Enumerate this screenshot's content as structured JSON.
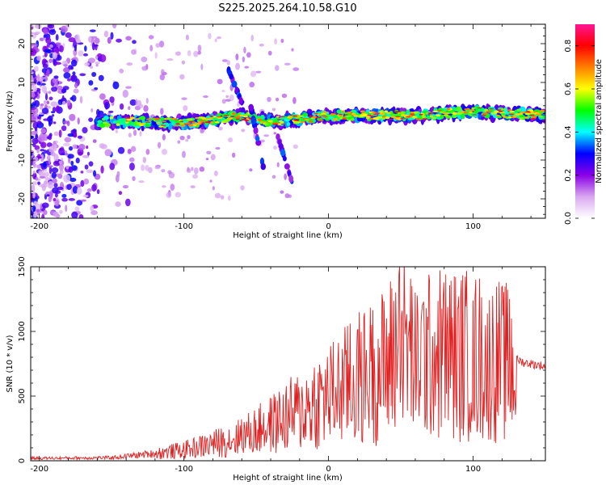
{
  "title": "S225.2025.264.10.58.G10",
  "chart_data": [
    {
      "type": "heatmap",
      "title": "S225.2025.264.10.58.G10",
      "xlabel": "Height of straight line (km)",
      "ylabel": "Frequency (Hz)",
      "xlim": [
        -206,
        150
      ],
      "ylim": [
        -25,
        25
      ],
      "xticks": [
        -200,
        -100,
        0,
        100
      ],
      "yticks": [
        -20,
        -10,
        0,
        10,
        20
      ],
      "colorbar": {
        "label": "Normalized spectral amplitude",
        "range": [
          0.0,
          0.9
        ],
        "ticks": [
          "0.0",
          "0.2",
          "0.4",
          "0.6",
          "0.8"
        ],
        "tick_values": [
          0.0,
          0.2,
          0.4,
          0.6,
          0.8
        ],
        "colors": [
          "#ffffff",
          "#d9a8f0",
          "#8a00e6",
          "#0000ff",
          "#00ffff",
          "#00ff00",
          "#ffff00",
          "#ff8000",
          "#ff0000",
          "#ff1493"
        ]
      },
      "ridge": {
        "start_height": -160,
        "end_height": 150,
        "frequency_trend": [
          [
            -160,
            0
          ],
          [
            -100,
            -0.5
          ],
          [
            -60,
            1.5
          ],
          [
            -40,
            0
          ],
          [
            -20,
            0.5
          ],
          [
            0,
            1.5
          ],
          [
            60,
            1.5
          ],
          [
            100,
            2.5
          ],
          [
            150,
            1.5
          ]
        ]
      },
      "noise_region": [
        -206,
        -140
      ]
    },
    {
      "type": "line",
      "xlabel": "Height of straight line (km)",
      "ylabel": "SNR (10 * v/v)",
      "xlim": [
        -206,
        150
      ],
      "ylim": [
        0,
        1500
      ],
      "xticks": [
        -200,
        -100,
        0,
        100
      ],
      "yticks": [
        0,
        500,
        1000,
        1500
      ],
      "series": [
        {
          "name": "SNR",
          "color": "#e02020",
          "envelope": [
            [
              -206,
              20
            ],
            [
              -150,
              25
            ],
            [
              -120,
              60
            ],
            [
              -100,
              90
            ],
            [
              -80,
              140
            ],
            [
              -60,
              200
            ],
            [
              -40,
              300
            ],
            [
              -20,
              420
            ],
            [
              0,
              540
            ],
            [
              20,
              680
            ],
            [
              40,
              800
            ],
            [
              50,
              1000
            ],
            [
              60,
              880
            ],
            [
              80,
              900
            ],
            [
              100,
              880
            ],
            [
              120,
              830
            ],
            [
              135,
              760
            ],
            [
              150,
              730
            ]
          ],
          "peaks": [
            [
              -80,
              170
            ],
            [
              -60,
              320
            ],
            [
              -45,
              370
            ],
            [
              -20,
              510
            ],
            [
              -10,
              720
            ],
            [
              15,
              1060
            ],
            [
              30,
              1050
            ],
            [
              40,
              1100
            ],
            [
              49,
              1500
            ],
            [
              60,
              1300
            ],
            [
              70,
              1390
            ],
            [
              80,
              1100
            ],
            [
              90,
              1270
            ],
            [
              100,
              1240
            ],
            [
              110,
              1140
            ],
            [
              125,
              1250
            ]
          ]
        }
      ]
    }
  ]
}
